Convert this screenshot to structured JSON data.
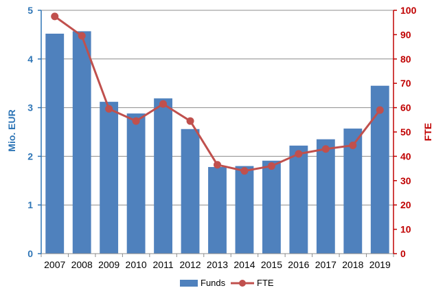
{
  "chart_data": {
    "type": "bar",
    "categories": [
      "2007",
      "2008",
      "2009",
      "2010",
      "2011",
      "2012",
      "2013",
      "2014",
      "2015",
      "2016",
      "2017",
      "2018",
      "2019"
    ],
    "series": [
      {
        "name": "Funds",
        "type": "bar",
        "axis": "left",
        "color": "#4f81bd",
        "values": [
          4.52,
          4.57,
          3.12,
          2.88,
          3.19,
          2.56,
          1.78,
          1.8,
          1.91,
          2.22,
          2.35,
          2.57,
          3.45
        ]
      },
      {
        "name": "FTE",
        "type": "line",
        "axis": "right",
        "color": "#c0504d",
        "values": [
          97.5,
          89.5,
          59.5,
          54.5,
          61.5,
          54.5,
          36.5,
          34,
          36,
          41,
          43,
          44.5,
          59
        ]
      }
    ],
    "ylabel_left": "Mio. EUR",
    "ylabel_right": "FTE",
    "ylim_left": [
      0,
      5
    ],
    "ylim_right": [
      0,
      100
    ],
    "yticks_left": [
      "0",
      "1",
      "2",
      "3",
      "4",
      "5"
    ],
    "yticks_right": [
      "0",
      "10",
      "20",
      "30",
      "40",
      "50",
      "60",
      "70",
      "80",
      "90",
      "100"
    ],
    "left_axis_color": "#2e75b6",
    "right_axis_color": "#c00000",
    "grid": true,
    "legend_position": "bottom"
  }
}
